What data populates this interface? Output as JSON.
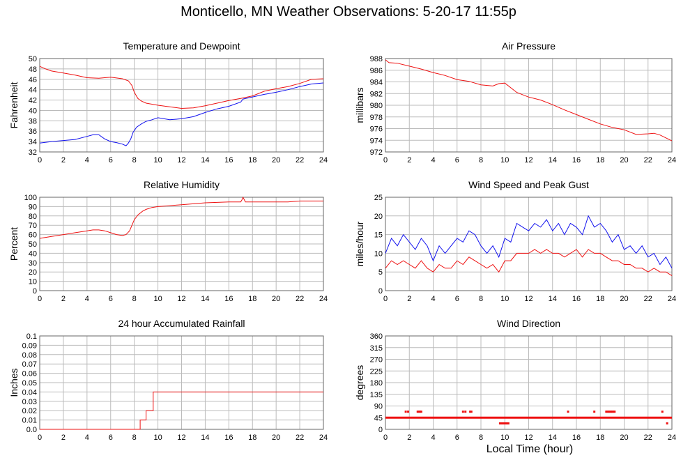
{
  "title": "Monticello, MN Weather Observations: 5-20-17 11:55p",
  "shared_xlabel": "Local Time (hour)",
  "colors": {
    "red": "#ee1111",
    "blue": "#1111ee",
    "grid": "#bbbbbb",
    "frame": "#666666"
  },
  "chart_data": [
    {
      "type": "line",
      "title": "Temperature and Dewpoint",
      "ylabel": "Fahrenheit",
      "xlim": [
        0,
        24
      ],
      "ylim": [
        32,
        50
      ],
      "xticks": [
        0,
        2,
        4,
        6,
        8,
        10,
        12,
        14,
        16,
        18,
        20,
        22,
        24
      ],
      "yticks": [
        32,
        34,
        36,
        38,
        40,
        42,
        44,
        46,
        48,
        50
      ],
      "series": [
        {
          "color": "red",
          "x": [
            0,
            0.5,
            1,
            2,
            3,
            4,
            5,
            6,
            7,
            7.5,
            7.8,
            8,
            8.3,
            8.6,
            9,
            10,
            11,
            12,
            13,
            14,
            15,
            16,
            17,
            18,
            19,
            20,
            21,
            22,
            23,
            24
          ],
          "y": [
            48.5,
            48,
            47.6,
            47.2,
            46.8,
            46.3,
            46.2,
            46.4,
            46.1,
            45.7,
            44.8,
            43.5,
            42.3,
            41.8,
            41.4,
            41,
            40.7,
            40.4,
            40.5,
            40.9,
            41.4,
            41.9,
            42.3,
            42.8,
            43.7,
            44.2,
            44.6,
            45.2,
            46,
            46.1
          ]
        },
        {
          "color": "blue",
          "x": [
            0,
            1,
            2,
            3,
            4,
            4.5,
            5,
            5.5,
            6,
            6.5,
            7,
            7.3,
            7.5,
            7.7,
            7.9,
            8.2,
            8.6,
            9,
            9.5,
            10,
            11,
            12,
            13,
            14,
            15,
            16,
            17,
            17.2,
            18,
            19,
            20,
            21,
            22,
            23,
            24
          ],
          "y": [
            33.7,
            34,
            34.2,
            34.4,
            35,
            35.3,
            35.3,
            34.5,
            34,
            33.8,
            33.5,
            33.2,
            33.7,
            34.5,
            35.8,
            36.8,
            37.4,
            37.9,
            38.2,
            38.6,
            38.2,
            38.4,
            38.8,
            39.6,
            40.3,
            40.8,
            41.6,
            42.2,
            42.6,
            43.1,
            43.5,
            44,
            44.6,
            45.1,
            45.3
          ]
        }
      ]
    },
    {
      "type": "line",
      "title": "Air Pressure",
      "ylabel": "millibars",
      "xlim": [
        0,
        24
      ],
      "ylim": [
        972,
        988
      ],
      "xticks": [
        0,
        2,
        4,
        6,
        8,
        10,
        12,
        14,
        16,
        18,
        20,
        22,
        24
      ],
      "yticks": [
        972,
        974,
        976,
        978,
        980,
        982,
        984,
        986,
        988
      ],
      "series": [
        {
          "color": "red",
          "x": [
            0,
            0.3,
            1,
            2,
            3,
            4,
            5,
            6,
            7,
            8,
            9,
            9.5,
            10,
            11,
            12,
            13,
            14,
            15,
            16,
            17,
            18,
            19,
            20,
            21,
            22,
            22.5,
            23,
            24
          ],
          "y": [
            987.8,
            987.3,
            987.2,
            986.7,
            986.2,
            985.6,
            985.1,
            984.4,
            984.1,
            983.5,
            983.3,
            983.7,
            983.8,
            982.2,
            981.4,
            980.9,
            980.1,
            979.2,
            978.4,
            977.6,
            976.8,
            976.2,
            975.8,
            975,
            975.1,
            975.2,
            974.9,
            973.9
          ]
        }
      ]
    },
    {
      "type": "line",
      "title": "Relative Humidity",
      "ylabel": "Percent",
      "xlim": [
        0,
        24
      ],
      "ylim": [
        0,
        100
      ],
      "xticks": [
        0,
        2,
        4,
        6,
        8,
        10,
        12,
        14,
        16,
        18,
        20,
        22,
        24
      ],
      "yticks": [
        0,
        10,
        20,
        30,
        40,
        50,
        60,
        70,
        80,
        90,
        100
      ],
      "series": [
        {
          "color": "red",
          "x": [
            0,
            0.5,
            1,
            2,
            3,
            4,
            4.5,
            5,
            5.5,
            6,
            6.5,
            7,
            7.3,
            7.6,
            7.8,
            8,
            8.3,
            8.7,
            9,
            9.5,
            10,
            11,
            12,
            13,
            14,
            15,
            16,
            17,
            17.1,
            17.2,
            17.4,
            18,
            19,
            20,
            21,
            22,
            23,
            24
          ],
          "y": [
            56,
            57,
            58,
            60,
            62,
            64,
            65,
            65,
            64,
            62,
            60,
            59,
            60,
            64,
            70,
            76,
            81,
            85,
            87,
            89,
            90,
            91,
            92,
            93,
            94,
            94.5,
            95,
            95,
            97,
            100,
            95,
            95,
            95,
            95,
            95,
            96,
            96,
            96
          ]
        }
      ]
    },
    {
      "type": "line",
      "title": "Wind Speed and Peak Gust",
      "ylabel": "miles/hour",
      "xlim": [
        0,
        24
      ],
      "ylim": [
        0,
        25
      ],
      "xticks": [
        0,
        2,
        4,
        6,
        8,
        10,
        12,
        14,
        16,
        18,
        20,
        22,
        24
      ],
      "yticks": [
        0,
        5,
        10,
        15,
        20,
        25
      ],
      "series": [
        {
          "color": "blue",
          "x": [
            0,
            0.5,
            1,
            1.5,
            2,
            2.5,
            3,
            3.5,
            4,
            4.5,
            5,
            5.5,
            6,
            6.5,
            7,
            7.5,
            8,
            8.5,
            9,
            9.5,
            10,
            10.5,
            11,
            11.5,
            12,
            12.5,
            13,
            13.5,
            14,
            14.5,
            15,
            15.5,
            16,
            16.5,
            17,
            17.5,
            18,
            18.5,
            19,
            19.5,
            20,
            20.5,
            21,
            21.5,
            22,
            22.5,
            23,
            23.5,
            24
          ],
          "y": [
            10,
            14,
            12,
            15,
            13,
            11,
            14,
            12,
            8,
            12,
            10,
            12,
            14,
            13,
            16,
            15,
            12,
            10,
            12,
            9,
            14,
            13,
            18,
            17,
            16,
            18,
            17,
            19,
            16,
            18,
            15,
            18,
            17,
            15,
            20,
            17,
            18,
            16,
            13,
            15,
            11,
            12,
            10,
            12,
            9,
            10,
            7,
            9,
            6
          ]
        },
        {
          "color": "red",
          "x": [
            0,
            0.5,
            1,
            1.5,
            2,
            2.5,
            3,
            3.5,
            4,
            4.5,
            5,
            5.5,
            6,
            6.5,
            7,
            7.5,
            8,
            8.5,
            9,
            9.5,
            10,
            10.5,
            11,
            11.5,
            12,
            12.5,
            13,
            13.5,
            14,
            14.5,
            15,
            15.5,
            16,
            16.5,
            17,
            17.5,
            18,
            18.5,
            19,
            19.5,
            20,
            20.5,
            21,
            21.5,
            22,
            22.5,
            23,
            23.5,
            24
          ],
          "y": [
            6,
            8,
            7,
            8,
            7,
            6,
            8,
            6,
            5,
            7,
            6,
            6,
            8,
            7,
            9,
            8,
            7,
            6,
            7,
            5,
            8,
            8,
            10,
            10,
            10,
            11,
            10,
            11,
            10,
            10,
            9,
            10,
            11,
            9,
            11,
            10,
            10,
            9,
            8,
            8,
            7,
            7,
            6,
            6,
            5,
            6,
            5,
            5,
            4
          ]
        }
      ]
    },
    {
      "type": "line",
      "title": "24 hour Accumulated Rainfall",
      "ylabel": "Inches",
      "xlim": [
        0,
        24
      ],
      "ylim": [
        0,
        0.1
      ],
      "xticks": [
        0,
        2,
        4,
        6,
        8,
        10,
        12,
        14,
        16,
        18,
        20,
        22,
        24
      ],
      "yticks": [
        "0.0",
        "0.01",
        "0.02",
        "0.03",
        "0.04",
        "0.05",
        "0.06",
        "0.07",
        "0.08",
        "0.09",
        "0.1"
      ],
      "series": [
        {
          "color": "red",
          "x": [
            0,
            8.5,
            8.5,
            9,
            9,
            9.6,
            9.6,
            24
          ],
          "y": [
            0,
            0,
            0.01,
            0.01,
            0.02,
            0.02,
            0.04,
            0.04
          ]
        }
      ]
    },
    {
      "type": "scatter",
      "title": "Wind Direction",
      "ylabel": "degrees",
      "xlim": [
        0,
        24
      ],
      "ylim": [
        0,
        360
      ],
      "xticks": [
        0,
        2,
        4,
        6,
        8,
        10,
        12,
        14,
        16,
        18,
        20,
        22,
        24
      ],
      "yticks": [
        0,
        45,
        90,
        135,
        180,
        225,
        270,
        315,
        360
      ],
      "baseline": {
        "from": 0,
        "to": 24,
        "value": 45
      },
      "series": [
        {
          "color": "red",
          "x": [
            1.7,
            1.9,
            2.7,
            2.8,
            2.9,
            3.0,
            6.5,
            6.7,
            7.1,
            7.2,
            9.6,
            9.7,
            9.8,
            9.9,
            10.0,
            10.1,
            10.2,
            10.3,
            15.3,
            17.5,
            18.5,
            18.6,
            18.7,
            18.8,
            18.9,
            19.0,
            19.1,
            19.2,
            23.2,
            23.6
          ],
          "y": [
            68,
            68,
            68,
            68,
            68,
            68,
            68,
            68,
            68,
            68,
            23,
            23,
            23,
            23,
            23,
            23,
            23,
            23,
            68,
            68,
            68,
            68,
            68,
            68,
            68,
            68,
            68,
            68,
            68,
            23
          ]
        }
      ]
    }
  ]
}
